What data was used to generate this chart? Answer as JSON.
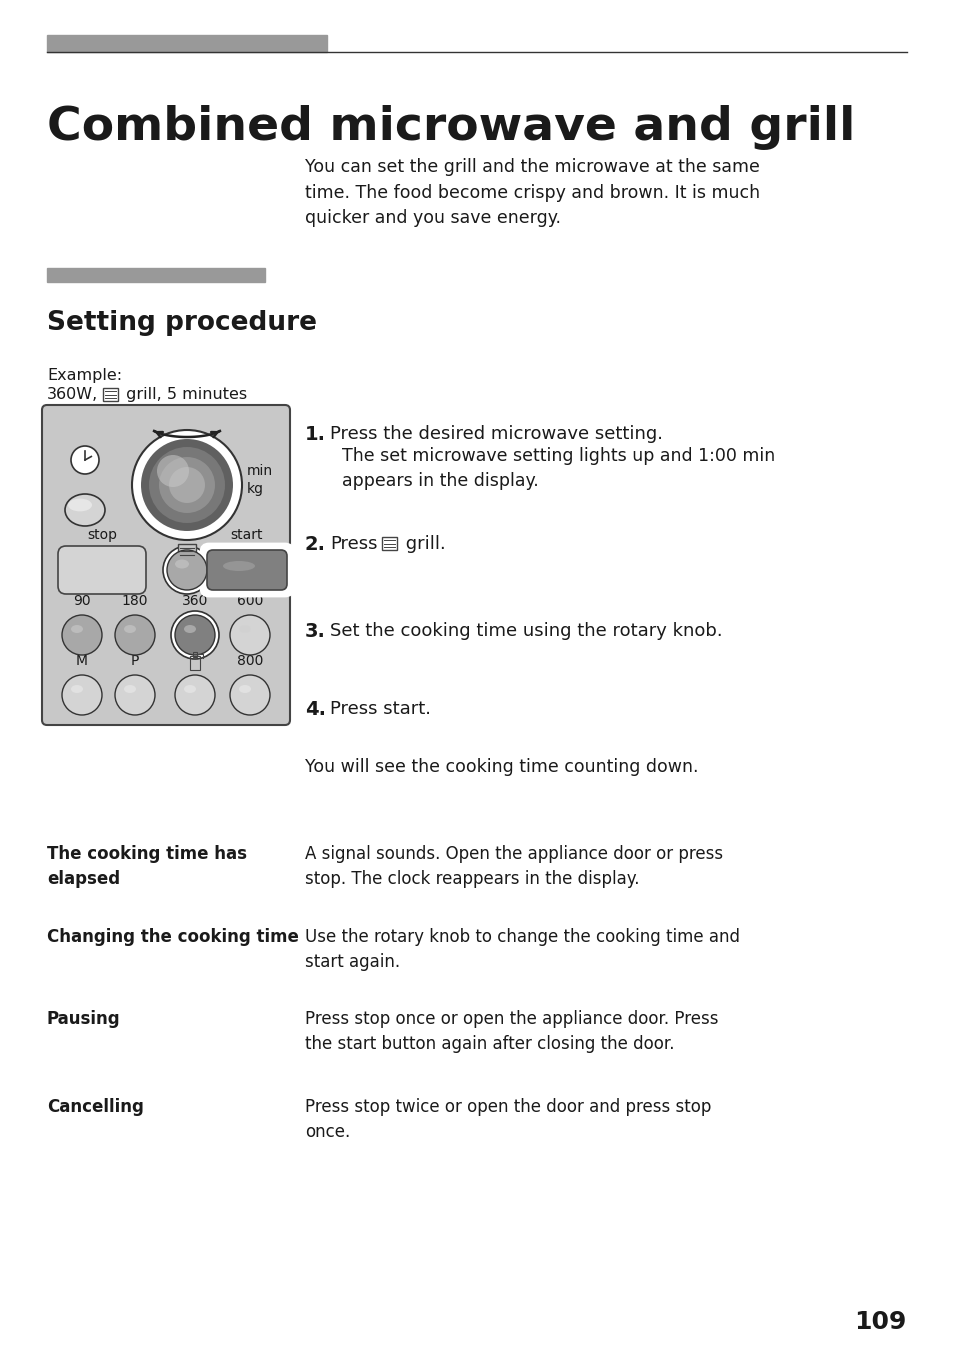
{
  "title": "Combined microwave and grill",
  "section_title": "Setting procedure",
  "intro_text": "You can set the grill and the microwave at the same\ntime. The food become crispy and brown. It is much\nquicker and you save energy.",
  "example_line1": "Example:",
  "example_line2_prefix": "360W,",
  "example_line2_suffix": " grill, 5 minutes",
  "step1_bold": "Press the desired microwave setting.",
  "step1_normal": "The set microwave setting lights up and 1:00 min\nappears in the display.",
  "step2_bold": "Press",
  "step2_suffix": " grill.",
  "step3_bold": "Set the cooking time using the rotary knob.",
  "step4_bold": "Press start.",
  "after_steps": "You will see the cooking time counting down.",
  "table_rows": [
    {
      "left": "The cooking time has\nelapsed",
      "right": "A signal sounds. Open the appliance door or press\nstop. The clock reappears in the display."
    },
    {
      "left": "Changing the cooking time",
      "right": "Use the rotary knob to change the cooking time and\nstart again."
    },
    {
      "left": "Pausing",
      "right": "Press stop once or open the appliance door. Press\nthe start button again after closing the door."
    },
    {
      "left": "Cancelling",
      "right": "Press stop twice or open the door and press stop\nonce."
    }
  ],
  "page_number": "109",
  "bg_color": "#ffffff",
  "text_color": "#1a1a1a",
  "gray_bar_color": "#999999",
  "panel_bg": "#c8c8c8",
  "panel_edge": "#444444",
  "knob_dark": "#808080",
  "knob_mid": "#a0a0a0",
  "knob_light": "#d0d0d0",
  "btn_light": "#d4d4d4",
  "btn_mid": "#a8a8a8",
  "btn_dark": "#808080",
  "btn_white": "#e8e8e8"
}
